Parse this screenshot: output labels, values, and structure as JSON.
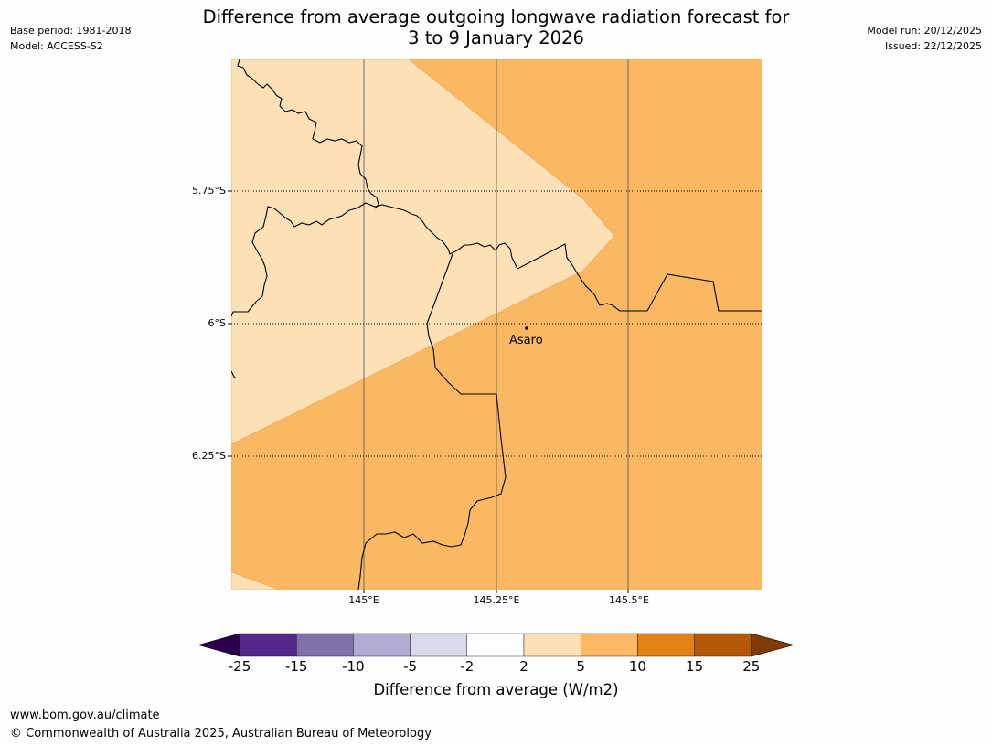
{
  "header": {
    "title_line1": "Difference from average outgoing longwave radiation forecast for",
    "title_line2": "3 to 9 January 2026",
    "base_period": "Base period: 1981-2018",
    "model": "Model: ACCESS-S2",
    "model_run": "Model run: 20/12/2025",
    "issued": "Issued: 22/12/2025"
  },
  "map": {
    "lat_labels": [
      "5.75°S",
      "6°S",
      "6.25°S"
    ],
    "lon_labels": [
      "145°E",
      "145.25°E",
      "145.5°E"
    ],
    "place_name": "Asaro",
    "colors": {
      "category_2_5": "#fde0b6",
      "category_5_10": "#fbb862",
      "border": "#000000",
      "gridline": "#666666"
    }
  },
  "colorbar": {
    "ticks": [
      "-25",
      "-15",
      "-10",
      "-5",
      "-2",
      "2",
      "5",
      "10",
      "15",
      "25"
    ],
    "colors": [
      "#2d004b",
      "#542788",
      "#8073ac",
      "#b2abd2",
      "#d8daeb",
      "#ffffff",
      "#fee0b6",
      "#fdb863",
      "#e08214",
      "#b35806",
      "#7f3b08"
    ],
    "label": "Difference from average (W/m2)"
  },
  "footer": {
    "url": "www.bom.gov.au/climate",
    "copyright": "© Commonwealth of Australia 2025, Australian Bureau of Meteorology"
  }
}
